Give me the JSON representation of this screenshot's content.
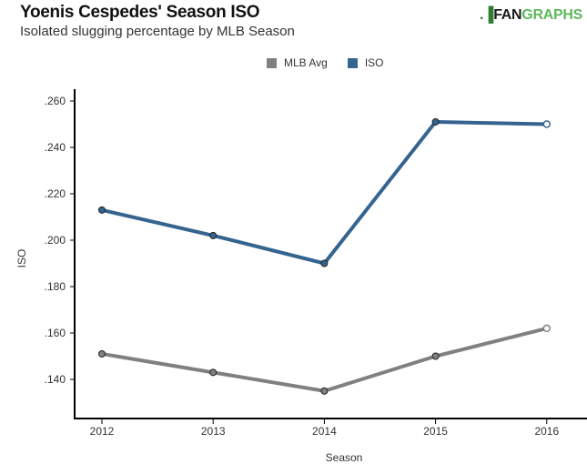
{
  "header": {
    "title": "Yoenis Cespedes' Season ISO",
    "subtitle": "Isolated slugging percentage by MLB Season",
    "logo_mark": ".▐",
    "logo_fan": "FAN",
    "logo_graphs": "GRAPHS"
  },
  "colors": {
    "mlb_avg": "#808080",
    "iso": "#34648f",
    "axis": "#000000"
  },
  "chart_data": {
    "type": "line",
    "title": "Yoenis Cespedes' Season ISO",
    "subtitle": "Isolated slugging percentage by MLB Season",
    "xlabel": "Season",
    "ylabel": "ISO",
    "x": [
      "2012",
      "2013",
      "2014",
      "2015",
      "2016"
    ],
    "ylim": [
      0.128,
      0.264
    ],
    "yticks": [
      0.14,
      0.16,
      0.18,
      0.2,
      0.22,
      0.24,
      0.26
    ],
    "ytick_labels": [
      ".140",
      ".160",
      ".180",
      ".200",
      ".220",
      ".240",
      ".260"
    ],
    "grid": false,
    "legend_position": "top-center",
    "series": [
      {
        "name": "MLB Avg",
        "color": "#808080",
        "values": [
          0.151,
          0.143,
          0.135,
          0.15,
          0.162
        ],
        "hollow_last": true
      },
      {
        "name": "ISO",
        "color": "#34648f",
        "values": [
          0.213,
          0.202,
          0.19,
          0.251,
          0.25
        ],
        "hollow_last": true
      }
    ]
  }
}
